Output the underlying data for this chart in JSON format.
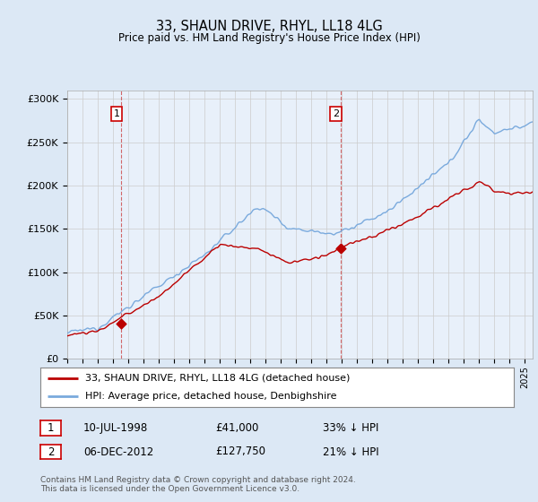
{
  "title": "33, SHAUN DRIVE, RHYL, LL18 4LG",
  "subtitle": "Price paid vs. HM Land Registry's House Price Index (HPI)",
  "legend_line1": "33, SHAUN DRIVE, RHYL, LL18 4LG (detached house)",
  "legend_line2": "HPI: Average price, detached house, Denbighshire",
  "annotation1_date": "10-JUL-1998",
  "annotation1_price": 41000,
  "annotation1_note": "33% ↓ HPI",
  "annotation2_date": "06-DEC-2012",
  "annotation2_price": 127750,
  "annotation2_note": "21% ↓ HPI",
  "footer": "Contains HM Land Registry data © Crown copyright and database right 2024.\nThis data is licensed under the Open Government Licence v3.0.",
  "hpi_color": "#7aaadd",
  "price_color": "#bb0000",
  "background_color": "#dce8f5",
  "plot_bg_color": "#e8f0fa",
  "ylim": [
    0,
    310000
  ],
  "yticks": [
    0,
    50000,
    100000,
    150000,
    200000,
    250000,
    300000
  ],
  "xlim_start": 1995.0,
  "xlim_end": 2025.5,
  "ann1_x": 1998.54,
  "ann2_x": 2012.92
}
